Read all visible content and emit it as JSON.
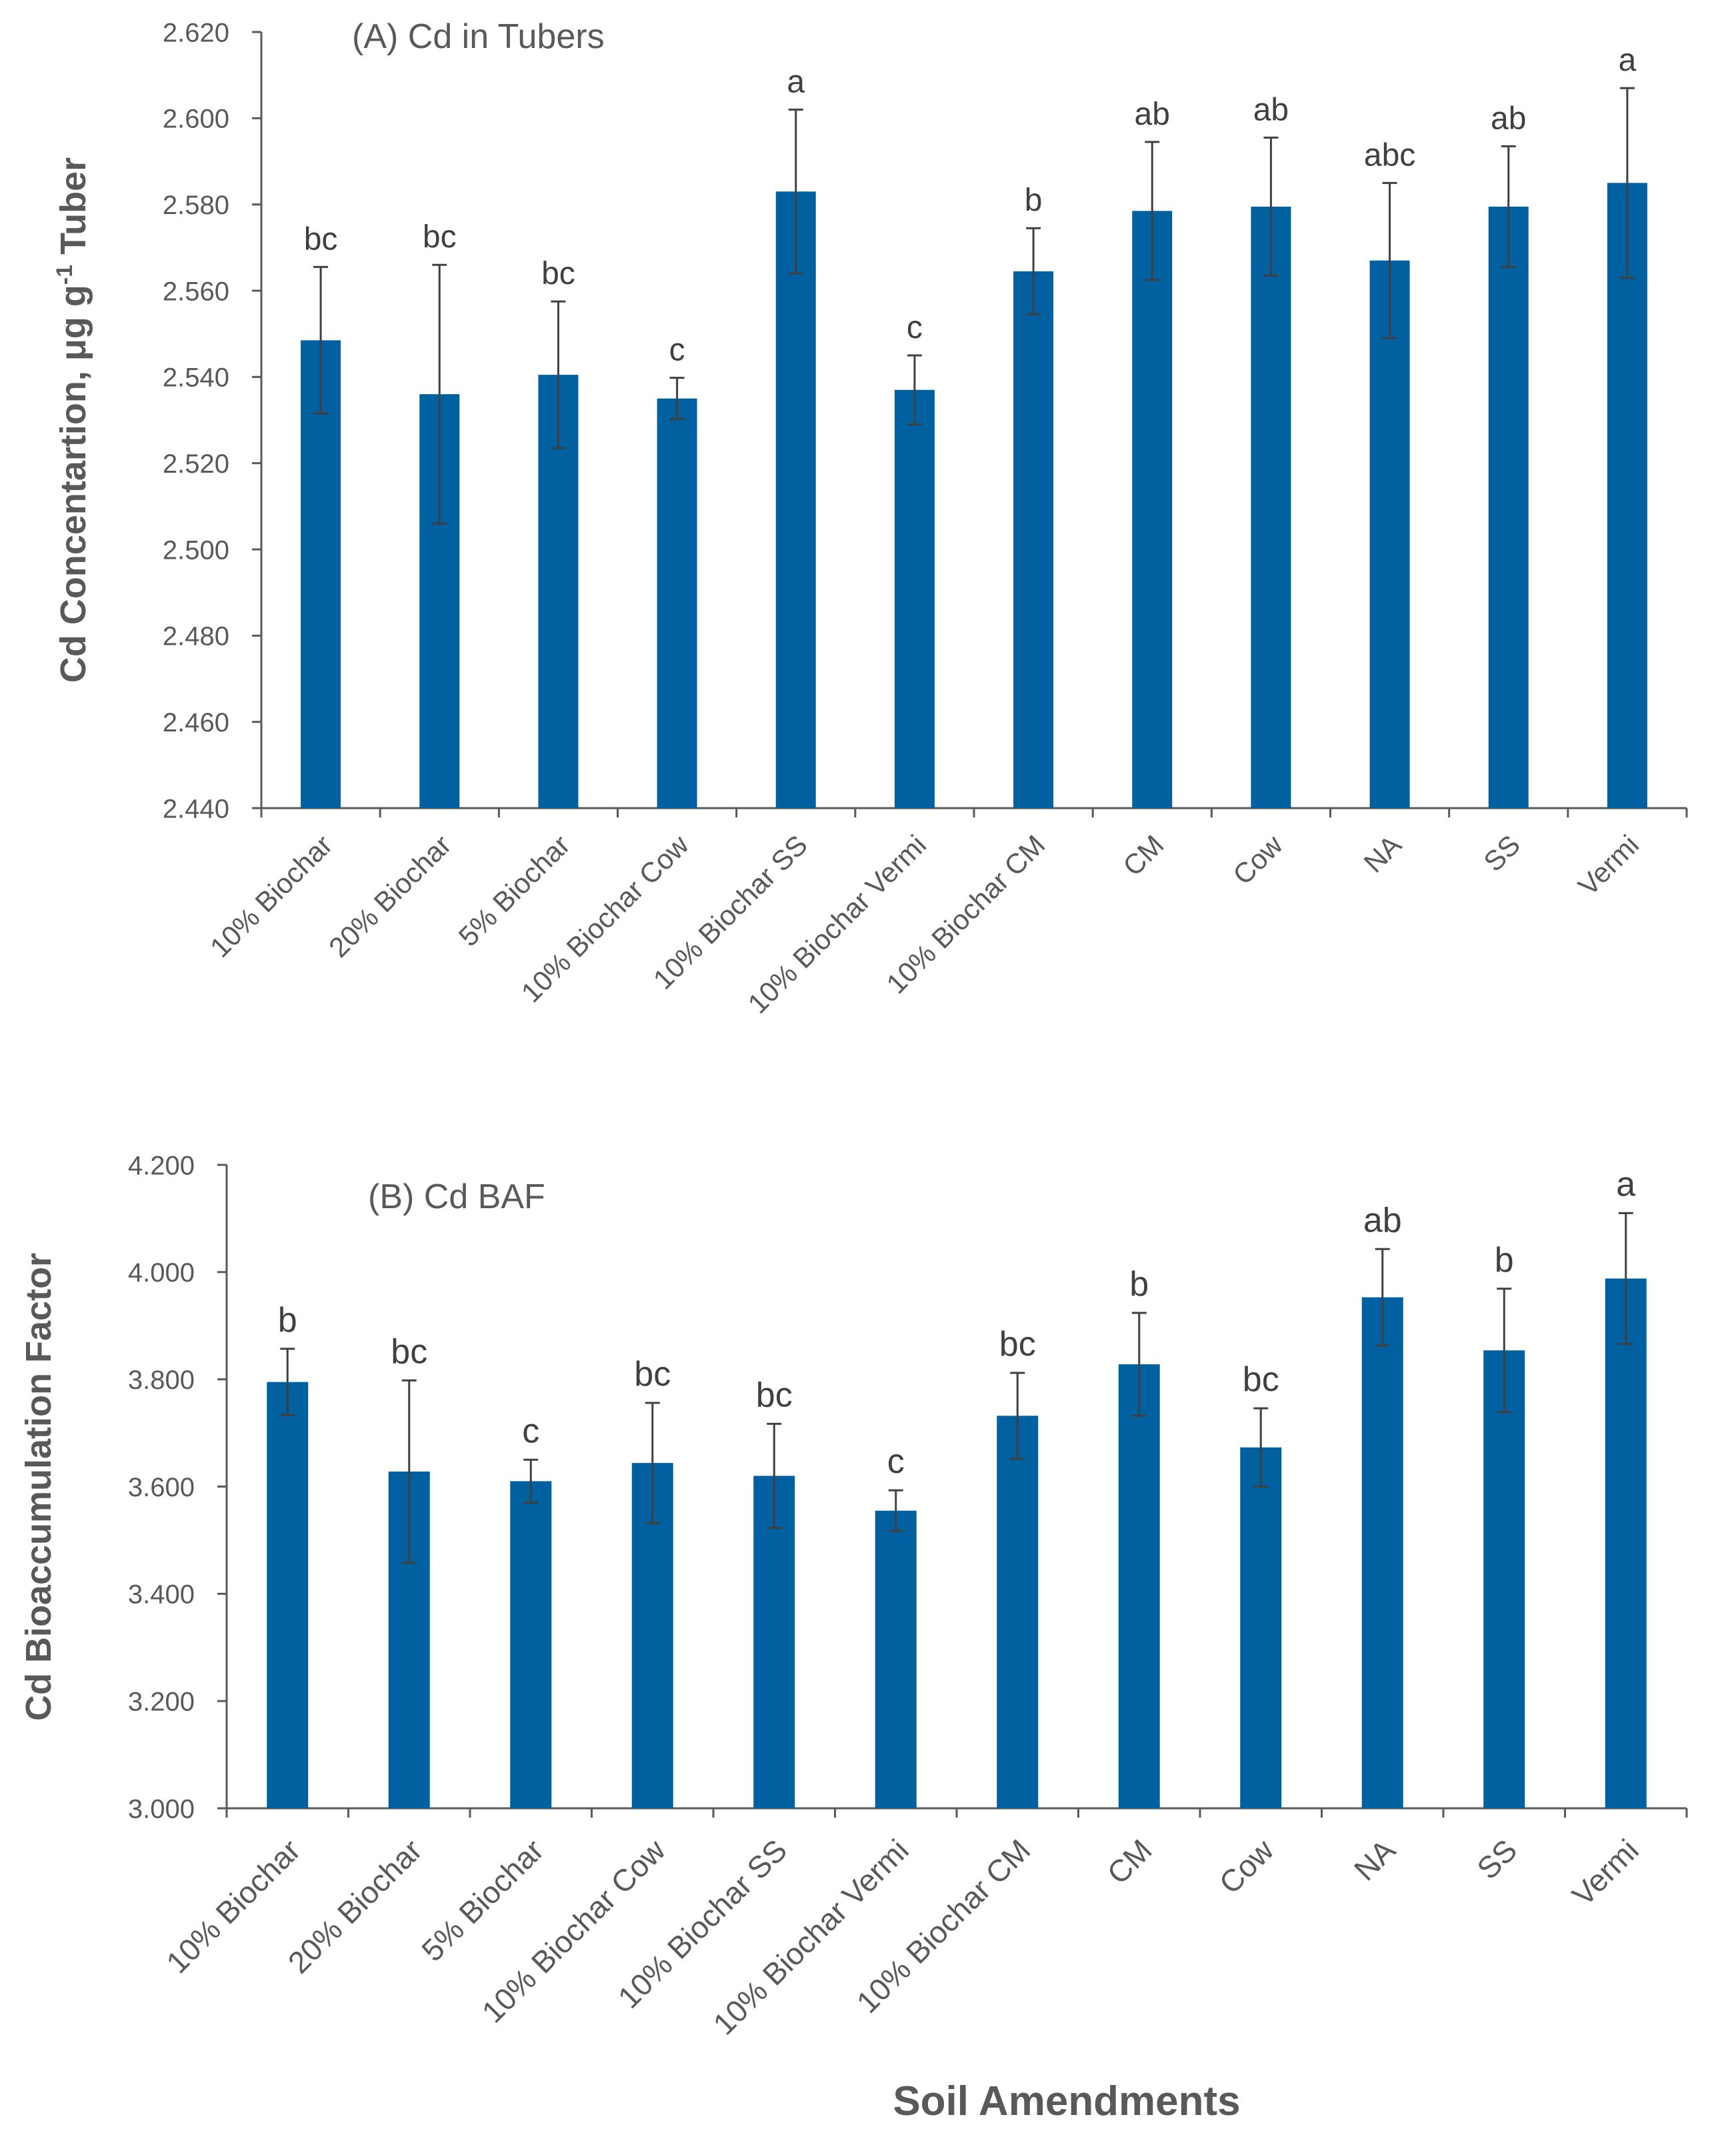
{
  "figure": {
    "xlabel": "Soil Amendments",
    "colors": {
      "bar": "#0060A0",
      "axis": "#595959",
      "text": "#595959",
      "error": "#404040",
      "label": "#404040"
    }
  },
  "chart_data": [
    {
      "type": "bar",
      "title": "(A) Cd in Tubers",
      "xlabel": "",
      "ylabel": "Cd Concentartion, μg g",
      "ylabel_sup": "-1",
      "ylabel_tail": " Tuber",
      "ylim": [
        2.44,
        2.62
      ],
      "ytick_step": 0.02,
      "ytick_labels": [
        "2.440",
        "2.460",
        "2.480",
        "2.500",
        "2.520",
        "2.540",
        "2.560",
        "2.580",
        "2.600",
        "2.620"
      ],
      "categories": [
        "10% Biochar",
        "20% Biochar",
        "5% Biochar",
        "10% Biochar Cow",
        "10% Biochar SS",
        "10% Biochar Vermi",
        "10% Biochar CM",
        "CM",
        "Cow",
        "NA",
        "SS",
        "Vermi"
      ],
      "values": [
        2.5485,
        2.536,
        2.5405,
        2.535,
        2.583,
        2.537,
        2.5645,
        2.5785,
        2.5795,
        2.567,
        2.5795,
        2.585
      ],
      "errors": [
        0.017,
        0.03,
        0.017,
        0.0048,
        0.019,
        0.008,
        0.01,
        0.016,
        0.016,
        0.018,
        0.014,
        0.022
      ],
      "letters": [
        "bc",
        "bc",
        "bc",
        "c",
        "a",
        "c",
        "b",
        "ab",
        "ab",
        "abc",
        "ab",
        "a"
      ]
    },
    {
      "type": "bar",
      "title": "(B) Cd BAF",
      "xlabel": "Soil Amendments",
      "ylabel": "Cd Bioaccumulation Factor",
      "ylim": [
        3.0,
        4.2
      ],
      "ytick_step": 0.2,
      "ytick_labels": [
        "3.000",
        "3.200",
        "3.400",
        "3.600",
        "3.800",
        "4.000",
        "4.200"
      ],
      "categories": [
        "10% Biochar",
        "20% Biochar",
        "5% Biochar",
        "10% Biochar Cow",
        "10% Biochar SS",
        "10% Biochar Vermi",
        "10% Biochar CM",
        "CM",
        "Cow",
        "NA",
        "SS",
        "Vermi"
      ],
      "values": [
        3.795,
        3.628,
        3.61,
        3.644,
        3.62,
        3.555,
        3.732,
        3.828,
        3.673,
        3.953,
        3.854,
        3.988
      ],
      "errors": [
        0.062,
        0.17,
        0.04,
        0.112,
        0.097,
        0.038,
        0.08,
        0.096,
        0.073,
        0.09,
        0.115,
        0.122
      ],
      "letters": [
        "b",
        "bc",
        "c",
        "bc",
        "bc",
        "c",
        "bc",
        "b",
        "bc",
        "ab",
        "b",
        "a"
      ]
    }
  ]
}
